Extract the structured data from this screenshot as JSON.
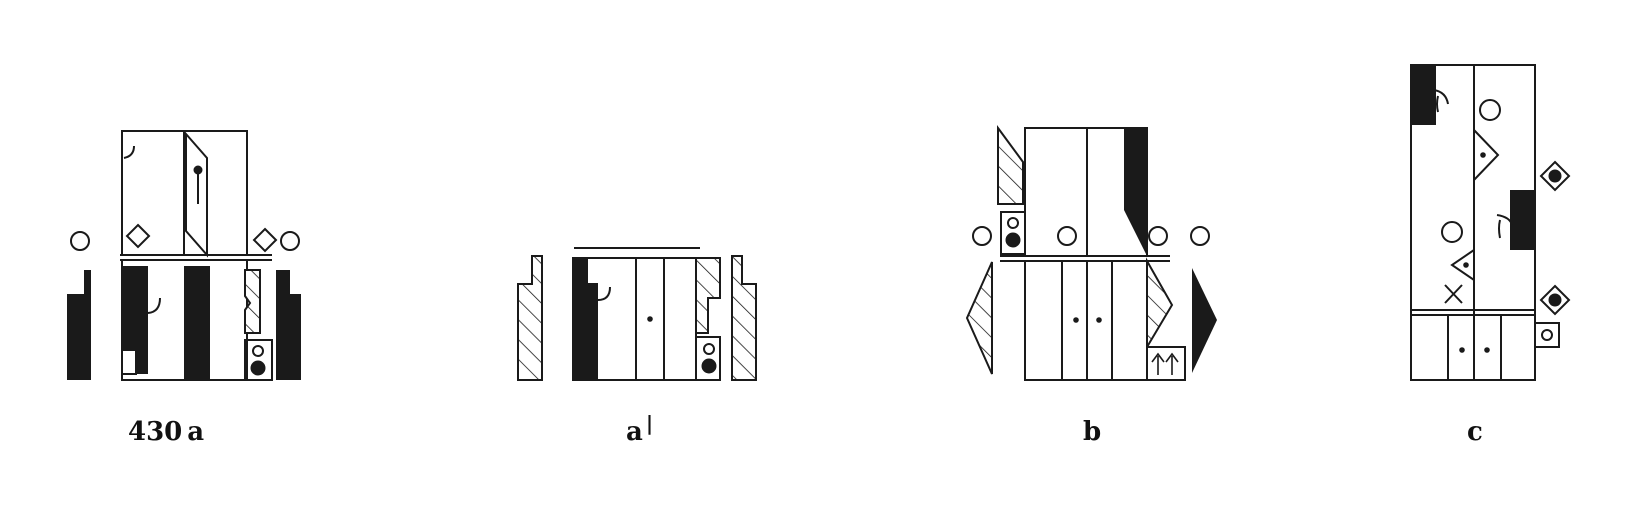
{
  "figures": [
    {
      "id": "430a",
      "label": "430",
      "label_suffix": "a"
    },
    {
      "id": "a-prime",
      "label": "a",
      "label_suffix": "|"
    },
    {
      "id": "b",
      "label": "b"
    },
    {
      "id": "c",
      "label": "c"
    }
  ],
  "colors": {
    "ink": "#1a1a1a",
    "paper": "#ffffff"
  }
}
